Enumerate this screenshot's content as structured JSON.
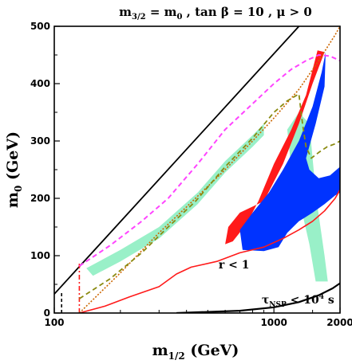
{
  "chart_data": {
    "type": "area",
    "title": "m3/2 = m0 , tan β = 10 , μ > 0",
    "title_parts": {
      "m": "m",
      "sub": "3/2",
      "rest": " =  m",
      "sub2": "0",
      "tail": " , tan β = 10 , μ > 0"
    },
    "xlabel": {
      "main": "m",
      "sub": "1/2",
      "unit": " (GeV)"
    },
    "ylabel": {
      "main": "m",
      "sub": "0",
      "unit": " (GeV)"
    },
    "xscale": "log",
    "xlim": [
      100,
      2000
    ],
    "ylim": [
      0,
      500
    ],
    "x_ticks": [
      "100",
      "1000",
      "2000"
    ],
    "x_tick_values": [
      100,
      1000,
      2000
    ],
    "y_ticks": [
      "0",
      "100",
      "200",
      "300",
      "400",
      "500"
    ],
    "y_tick_values": [
      0,
      100,
      200,
      300,
      400,
      500
    ],
    "grid": false,
    "annotations": [
      {
        "text": "r < 1",
        "x": 560,
        "y": 78
      },
      {
        "text_main": "τ",
        "text_sub": "NSP",
        "text_tail": " < 10",
        "text_sup": "4",
        "text_end": " s",
        "x": 880,
        "y": 17
      }
    ],
    "colors": {
      "red": "#ff1a1a",
      "blue": "#0033ff",
      "mint": "#99f0c8",
      "magenta": "#ff44ff",
      "olive": "#8a8a10",
      "orange": "#cc6600",
      "black": "#000000"
    },
    "series": [
      {
        "name": "",
        "kind": "black-diagonal",
        "points": [
          [
            100,
            33
          ],
          [
            1300,
            500
          ]
        ]
      },
      {
        "name": "",
        "kind": "black-bottom",
        "points": [
          [
            360,
            0
          ],
          [
            700,
            4
          ],
          [
            1000,
            10
          ],
          [
            1300,
            19
          ],
          [
            1600,
            31
          ],
          [
            1850,
            43
          ],
          [
            2000,
            52
          ]
        ]
      },
      {
        "name": "",
        "kind": "black-vertical-dashed",
        "points": [
          [
            108,
            0
          ],
          [
            108,
            37
          ]
        ]
      },
      {
        "name": "",
        "kind": "red-vertical-dashdot",
        "points": [
          [
            130,
            0
          ],
          [
            130,
            88
          ]
        ]
      },
      {
        "name": "",
        "kind": "red-line",
        "points": [
          [
            130,
            0
          ],
          [
            170,
            12
          ],
          [
            220,
            28
          ],
          [
            300,
            46
          ],
          [
            360,
            68
          ],
          [
            420,
            80
          ],
          [
            550,
            90
          ],
          [
            700,
            105
          ],
          [
            900,
            115
          ],
          [
            1100,
            130
          ],
          [
            1300,
            145
          ],
          [
            1500,
            160
          ],
          [
            1700,
            178
          ],
          [
            1900,
            200
          ],
          [
            2000,
            215
          ]
        ]
      },
      {
        "name": "",
        "kind": "orange-dotted",
        "points": [
          [
            130,
            0
          ],
          [
            200,
            70
          ],
          [
            300,
            140
          ],
          [
            400,
            185
          ],
          [
            600,
            250
          ],
          [
            800,
            300
          ],
          [
            1000,
            340
          ],
          [
            1300,
            390
          ],
          [
            1600,
            440
          ],
          [
            1900,
            485
          ],
          [
            2000,
            500
          ]
        ]
      },
      {
        "name": "",
        "kind": "olive-dashed",
        "points": [
          [
            130,
            25
          ],
          [
            180,
            60
          ],
          [
            250,
            105
          ],
          [
            330,
            150
          ],
          [
            440,
            195
          ],
          [
            600,
            255
          ],
          [
            800,
            305
          ],
          [
            1000,
            350
          ],
          [
            1150,
            370
          ],
          [
            1300,
            382
          ],
          [
            1350,
            330
          ],
          [
            1400,
            290
          ],
          [
            1480,
            270
          ],
          [
            1600,
            280
          ],
          [
            1750,
            290
          ],
          [
            1900,
            295
          ],
          [
            2000,
            300
          ]
        ]
      },
      {
        "name": "",
        "kind": "magenta-dashed",
        "points": [
          [
            130,
            82
          ],
          [
            180,
            118
          ],
          [
            250,
            160
          ],
          [
            330,
            200
          ],
          [
            450,
            260
          ],
          [
            600,
            320
          ],
          [
            800,
            365
          ],
          [
            1000,
            400
          ],
          [
            1200,
            425
          ],
          [
            1400,
            440
          ],
          [
            1600,
            450
          ],
          [
            1800,
            448
          ],
          [
            2000,
            440
          ]
        ]
      }
    ],
    "regions": [
      {
        "name": "",
        "kind": "mint-strip",
        "points": [
          [
            140,
            78
          ],
          [
            200,
            110
          ],
          [
            300,
            150
          ],
          [
            450,
            210
          ],
          [
            600,
            265
          ],
          [
            800,
            310
          ],
          [
            900,
            330
          ],
          [
            900,
            310
          ],
          [
            800,
            290
          ],
          [
            600,
            245
          ],
          [
            450,
            190
          ],
          [
            300,
            130
          ],
          [
            200,
            90
          ],
          [
            150,
            65
          ]
        ]
      },
      {
        "name": "",
        "kind": "mint-band",
        "points": [
          [
            1150,
            320
          ],
          [
            1300,
            350
          ],
          [
            1450,
            330
          ],
          [
            1560,
            200
          ],
          [
            1700,
            100
          ],
          [
            1760,
            55
          ],
          [
            1550,
            55
          ],
          [
            1450,
            120
          ],
          [
            1300,
            200
          ],
          [
            1200,
            250
          ]
        ]
      },
      {
        "name": "",
        "kind": "red-region",
        "points": [
          [
            1580,
            458
          ],
          [
            1700,
            455
          ],
          [
            1500,
            400
          ],
          [
            1300,
            330
          ],
          [
            1100,
            260
          ],
          [
            900,
            195
          ],
          [
            700,
            175
          ],
          [
            620,
            150
          ],
          [
            600,
            120
          ],
          [
            650,
            125
          ],
          [
            750,
            155
          ],
          [
            850,
            195
          ],
          [
            1000,
            260
          ],
          [
            1200,
            320
          ],
          [
            1400,
            380
          ]
        ]
      },
      {
        "name": "",
        "kind": "blue-region",
        "points": [
          [
            1720,
            455
          ],
          [
            1650,
            420
          ],
          [
            1500,
            360
          ],
          [
            1300,
            300
          ],
          [
            1100,
            250
          ],
          [
            950,
            210
          ],
          [
            800,
            175
          ],
          [
            700,
            145
          ],
          [
            720,
            110
          ],
          [
            900,
            108
          ],
          [
            1050,
            115
          ],
          [
            1150,
            140
          ],
          [
            1300,
            160
          ],
          [
            1500,
            175
          ],
          [
            1700,
            190
          ],
          [
            1900,
            205
          ],
          [
            2000,
            210
          ],
          [
            2000,
            255
          ],
          [
            1800,
            240
          ],
          [
            1600,
            235
          ],
          [
            1450,
            250
          ],
          [
            1400,
            270
          ],
          [
            1550,
            330
          ],
          [
            1700,
            395
          ]
        ]
      }
    ]
  }
}
